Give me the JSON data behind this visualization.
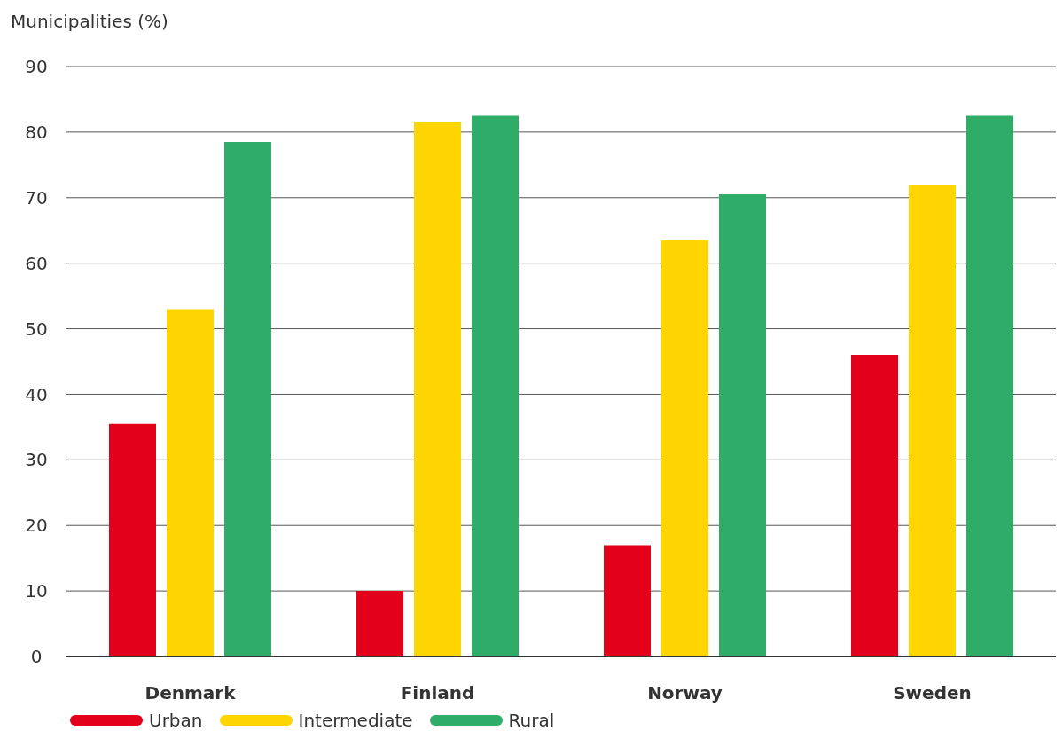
{
  "chart_data": {
    "type": "bar",
    "ylabel": "Municipalities (%)",
    "categories": [
      "Denmark",
      "Finland",
      "Norway",
      "Sweden"
    ],
    "series": [
      {
        "name": "Urban",
        "color": "#e2001a",
        "values": [
          35.5,
          10,
          17,
          46
        ]
      },
      {
        "name": "Intermediate",
        "color": "#ffd500",
        "values": [
          53,
          81.5,
          63.5,
          72
        ]
      },
      {
        "name": "Rural",
        "color": "#2fad68",
        "values": [
          78.5,
          82.5,
          70.5,
          82.5
        ]
      }
    ],
    "ylim": [
      0,
      90
    ],
    "yticks": [
      0,
      10,
      20,
      30,
      40,
      50,
      60,
      70,
      80,
      90
    ],
    "grid": "y",
    "legend": "bottom left"
  }
}
